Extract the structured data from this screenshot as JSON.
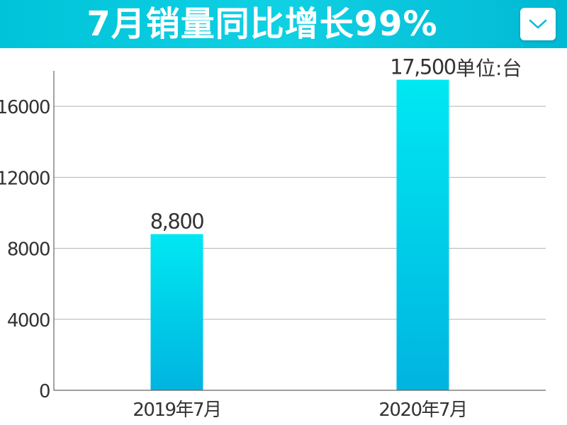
{
  "header": {
    "title": "7月销量同比增长99%",
    "collapse_icon": "chevron-down-icon",
    "accent_color": "#00c3d9"
  },
  "chart_data": {
    "type": "bar",
    "title": "7月销量同比增长99%",
    "unit": "单位:台",
    "categories": [
      "2019年7月",
      "2020年7月"
    ],
    "values": [
      8800,
      17500
    ],
    "value_labels": [
      "8,800",
      "17,500"
    ],
    "yticks": [
      0,
      4000,
      8000,
      12000,
      16000
    ],
    "ylim": [
      0,
      18000
    ],
    "xlabel": "",
    "ylabel": "",
    "grid": true,
    "bar_color_top": "#00e8f2",
    "bar_color_bottom": "#00b4e0"
  }
}
